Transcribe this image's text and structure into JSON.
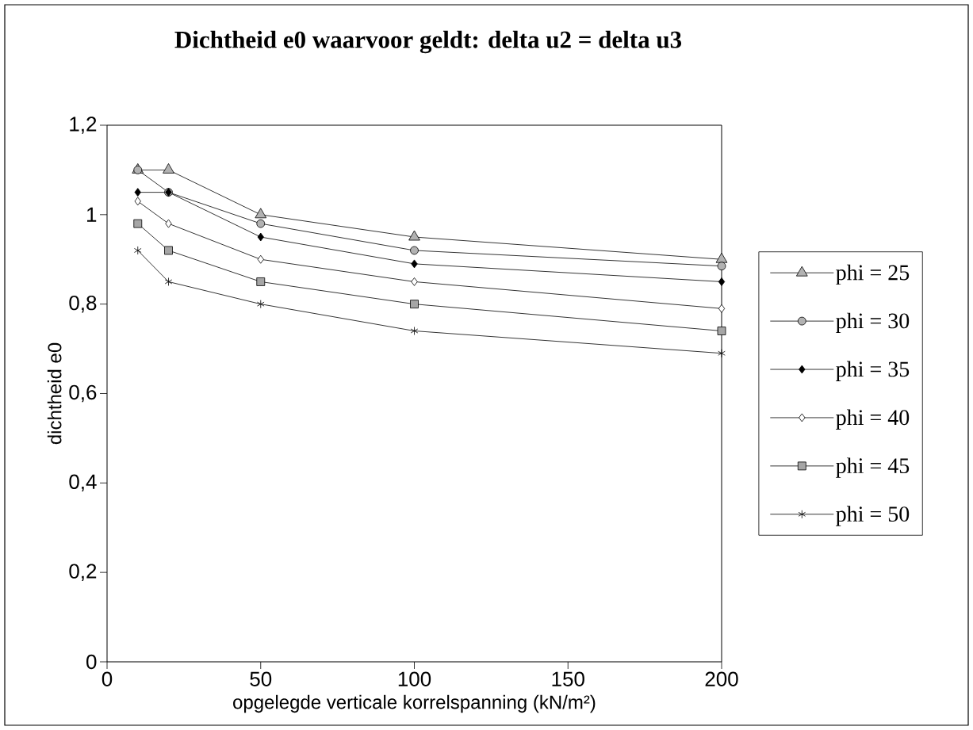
{
  "chart_data": {
    "type": "line",
    "title": "Dichtheid e0 waarvoor geldt: delta u2 = delta u3",
    "xlabel": "opgelegde verticale korrelspanning (kN/m²)",
    "ylabel": "dichtheid e0",
    "x": [
      10,
      20,
      50,
      100,
      200
    ],
    "series": [
      {
        "name": "phi = 25",
        "color": "#000000",
        "marker": "triangle",
        "values": [
          1.1,
          1.1,
          1.0,
          0.95,
          0.9
        ]
      },
      {
        "name": "phi = 30",
        "color": "#000000",
        "marker": "circle",
        "values": [
          1.1,
          1.05,
          0.98,
          0.92,
          0.885
        ]
      },
      {
        "name": "phi = 35",
        "color": "#000000",
        "marker": "diamond",
        "values": [
          1.05,
          1.05,
          0.95,
          0.89,
          0.85
        ]
      },
      {
        "name": "phi = 40",
        "color": "#000000",
        "marker": "diamond",
        "values": [
          1.03,
          0.98,
          0.9,
          0.85,
          0.79
        ]
      },
      {
        "name": "phi = 45",
        "color": "#000000",
        "marker": "square",
        "values": [
          0.98,
          0.92,
          0.85,
          0.8,
          0.74
        ]
      },
      {
        "name": "phi = 50",
        "color": "#000000",
        "marker": "cross",
        "values": [
          0.92,
          0.85,
          0.8,
          0.74,
          0.69
        ]
      }
    ],
    "xlim": [
      0,
      200
    ],
    "xticks": [
      0,
      50,
      100,
      150,
      200
    ],
    "ylim": [
      0,
      1.2
    ],
    "yticks": [
      0,
      {
        "value": 0.2,
        "label": "0,2"
      },
      {
        "value": 0.4,
        "label": "0,4"
      },
      {
        "value": 0.6,
        "label": "0,6"
      },
      {
        "value": 0.8,
        "label": "0,8"
      },
      1,
      {
        "value": 1.2,
        "label": "1,2"
      }
    ],
    "grid": false,
    "legend": "right",
    "line_style": "solid"
  }
}
